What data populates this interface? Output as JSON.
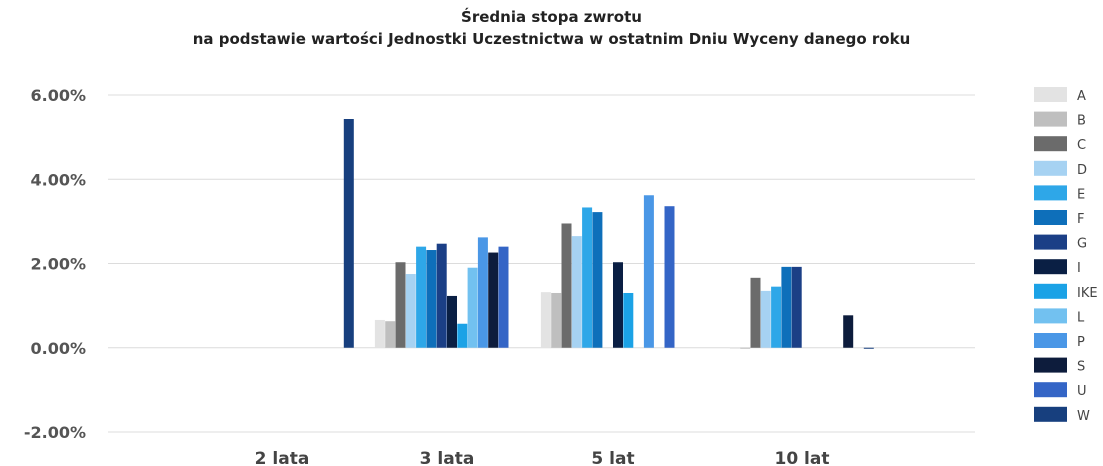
{
  "chart_data": {
    "type": "bar",
    "title": "Średnia stopa zwrotu",
    "subtitle": "na podstawie wartości Jednostki Uczestnictwa w ostatnim Dniu Wyceny danego roku",
    "categories": [
      "2 lata",
      "3 lata",
      "5 lat",
      "10 lat"
    ],
    "ylim": [
      -0.02,
      0.06
    ],
    "yticks": [
      -0.02,
      0.0,
      0.02,
      0.04,
      0.06
    ],
    "ytick_labels": [
      "-2.00%",
      "0.00%",
      "2.00%",
      "4.00%",
      "6.00%"
    ],
    "grid": true,
    "legend_position": "right",
    "series": [
      {
        "name": "A",
        "color": "#e3e3e3",
        "values": [
          null,
          0.0066,
          0.0132,
          0.0
        ]
      },
      {
        "name": "B",
        "color": "#bfbfbf",
        "values": [
          null,
          0.0063,
          0.013,
          0.0
        ]
      },
      {
        "name": "C",
        "color": "#6b6b6b",
        "values": [
          null,
          0.0203,
          0.0295,
          0.0166
        ]
      },
      {
        "name": "D",
        "color": "#a6d2f2",
        "values": [
          null,
          0.0175,
          0.0265,
          0.0135
        ]
      },
      {
        "name": "E",
        "color": "#2ea7e8",
        "values": [
          null,
          0.024,
          0.0333,
          0.0145
        ]
      },
      {
        "name": "F",
        "color": "#0e6fba",
        "values": [
          null,
          0.0232,
          0.0322,
          0.0192
        ]
      },
      {
        "name": "G",
        "color": "#1b3f86",
        "values": [
          null,
          0.0247,
          null,
          0.0192
        ]
      },
      {
        "name": "I",
        "color": "#0a1f44",
        "values": [
          null,
          0.0123,
          0.0203,
          null
        ]
      },
      {
        "name": "IKE",
        "color": "#1ba2e6",
        "values": [
          null,
          0.0057,
          0.013,
          null
        ]
      },
      {
        "name": "L",
        "color": "#72c1f0",
        "values": [
          null,
          0.019,
          null,
          null
        ]
      },
      {
        "name": "P",
        "color": "#4a97e6",
        "values": [
          null,
          0.0262,
          0.0362,
          null
        ]
      },
      {
        "name": "S",
        "color": "#0d1c3c",
        "values": [
          null,
          0.0226,
          null,
          0.0077
        ]
      },
      {
        "name": "U",
        "color": "#3465c6",
        "values": [
          null,
          0.024,
          0.0336,
          null
        ]
      },
      {
        "name": "W",
        "color": "#173f7e",
        "values": [
          0.0543,
          null,
          null,
          0.0
        ]
      }
    ]
  }
}
